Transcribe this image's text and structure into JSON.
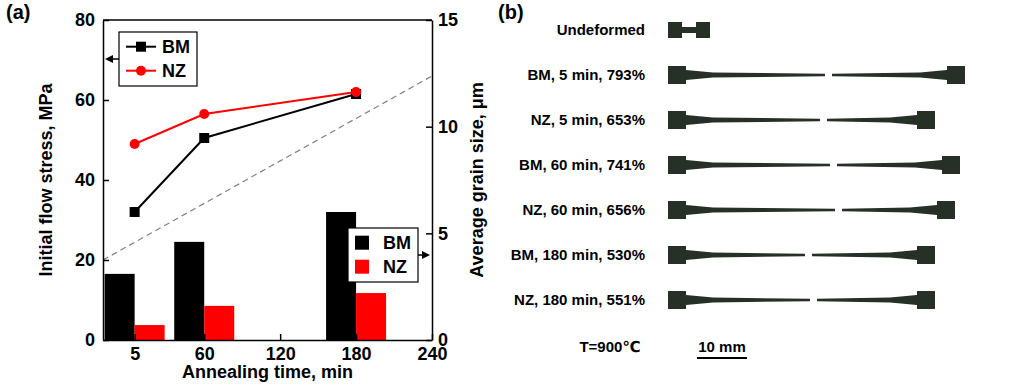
{
  "chart_data": {
    "type": "combo",
    "panel_label": "(a)",
    "x_label": "Annealing time, min",
    "y_label": "Initial flow stress, MPa",
    "y2_label": "Average grain size, μm",
    "x": [
      5,
      60,
      180
    ],
    "xlim": [
      -20,
      240
    ],
    "xticks": [
      5,
      60,
      120,
      180,
      240
    ],
    "ylim": [
      0,
      80
    ],
    "yticks": [
      0,
      20,
      40,
      60,
      80
    ],
    "y2lim": [
      0,
      15
    ],
    "y2ticks": [
      0,
      5,
      10,
      15
    ],
    "series": [
      {
        "name": "BM",
        "type": "line",
        "color": "#000000",
        "marker": "square",
        "legend": "upper left",
        "values": [
          32,
          50.5,
          61.5
        ]
      },
      {
        "name": "NZ",
        "type": "line",
        "color": "#ff0000",
        "marker": "circle",
        "legend": "upper left",
        "values": [
          49,
          56.5,
          62
        ]
      },
      {
        "name": "BM",
        "type": "bar",
        "axis": "y2",
        "color": "#000000",
        "legend": "lower right",
        "values": [
          3.1,
          4.6,
          6.0
        ]
      },
      {
        "name": "NZ",
        "type": "bar",
        "axis": "y2",
        "color": "#ff0000",
        "legend": "lower right",
        "values": [
          0.7,
          1.6,
          2.2
        ]
      }
    ],
    "reference_line": {
      "x": [
        -20,
        240
      ],
      "y": [
        20,
        66
      ],
      "color": "#808080",
      "line_style": "dashed"
    }
  },
  "panel_b": {
    "panel_label": "(b)",
    "specimens": [
      "Undeformed",
      "BM, 5 min, 793%",
      "NZ, 5 min, 653%",
      "BM, 60 min, 741%",
      "NZ, 60 min, 656%",
      "BM, 180 min, 530%",
      "NZ, 180 min, 551%"
    ],
    "temperature": "T=900℃",
    "scale_bar": "10 mm"
  }
}
